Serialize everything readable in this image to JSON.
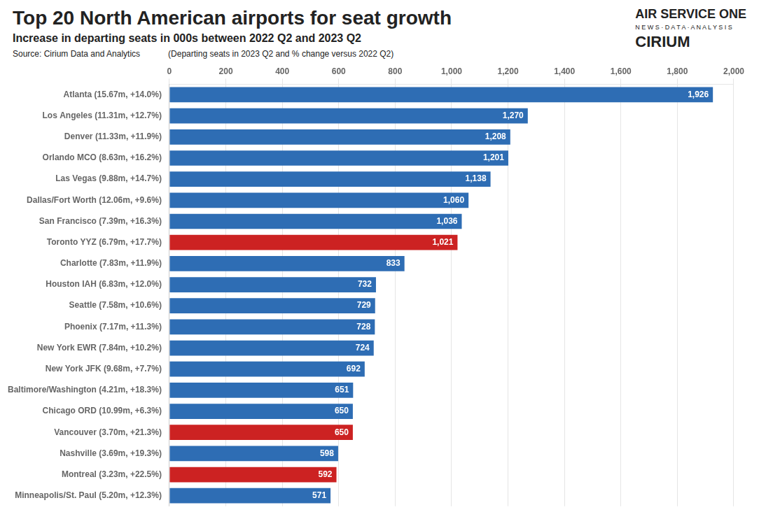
{
  "chart_data": {
    "type": "bar",
    "orientation": "horizontal",
    "title": "Top 20 North American airports for seat growth",
    "subtitle": "Increase in departing seats in 000s between 2022 Q2 and 2023 Q2",
    "annotations": [
      "Source: Cirium Data and Analytics",
      "(Departing seats in 2023 Q2 and % change versus 2022 Q2)",
      "AIR SERVICE ONE",
      "N E W S  ·  D A T A  ·  A N A L Y S I S",
      "CIRIUM"
    ],
    "categories": [
      "Atlanta (15.67m, +14.0%)",
      "Los Angeles (11.31m, +12.7%)",
      "Denver (11.33m, +11.9%)",
      "Orlando MCO (8.63m, +16.2%)",
      "Las Vegas (9.88m, +14.7%)",
      "Dallas/Fort Worth (12.06m, +9.6%)",
      "San Francisco (7.39m, +16.3%)",
      "Toronto YYZ (6.79m, +17.7%)",
      "Charlotte (7.83m, +11.9%)",
      "Houston IAH (6.83m, +12.0%)",
      "Seattle (7.58m, +10.6%)",
      "Phoenix (7.17m, +11.3%)",
      "New York EWR (7.84m, +10.2%)",
      "New York JFK (9.68m, +7.7%)",
      "Baltimore/Washington (4.21m, +18.3%)",
      "Chicago ORD (10.99m, +6.3%)",
      "Vancouver (3.70m, +21.3%)",
      "Nashville (3.69m, +19.3%)",
      "Montreal (3.23m, +22.5%)",
      "Minneapolis/St. Paul (5.20m, +12.3%)"
    ],
    "values": [
      1926,
      1270,
      1208,
      1201,
      1138,
      1060,
      1036,
      1021,
      833,
      732,
      729,
      728,
      724,
      692,
      651,
      650,
      650,
      598,
      592,
      571
    ],
    "value_labels": [
      "1,926",
      "1,270",
      "1,208",
      "1,201",
      "1,138",
      "1,060",
      "1,036",
      "1,021",
      "833",
      "732",
      "729",
      "728",
      "724",
      "692",
      "651",
      "650",
      "650",
      "598",
      "592",
      "571"
    ],
    "colors": [
      "#2E6DB4",
      "#2E6DB4",
      "#2E6DB4",
      "#2E6DB4",
      "#2E6DB4",
      "#2E6DB4",
      "#2E6DB4",
      "#CC2222",
      "#2E6DB4",
      "#2E6DB4",
      "#2E6DB4",
      "#2E6DB4",
      "#2E6DB4",
      "#2E6DB4",
      "#2E6DB4",
      "#2E6DB4",
      "#CC2222",
      "#2E6DB4",
      "#CC2222",
      "#2E6DB4"
    ],
    "xlim": [
      0,
      2000
    ],
    "xticks": [
      0,
      200,
      400,
      600,
      800,
      {
        "value": 1000,
        "label": "1,000"
      },
      {
        "value": 1200,
        "label": "1,200"
      },
      {
        "value": 1400,
        "label": "1,400"
      },
      {
        "value": 1600,
        "label": "1,600"
      },
      {
        "value": 1800,
        "label": "1,800"
      },
      {
        "value": 2000,
        "label": "2,000"
      }
    ],
    "grid": true,
    "data_labels": true
  }
}
